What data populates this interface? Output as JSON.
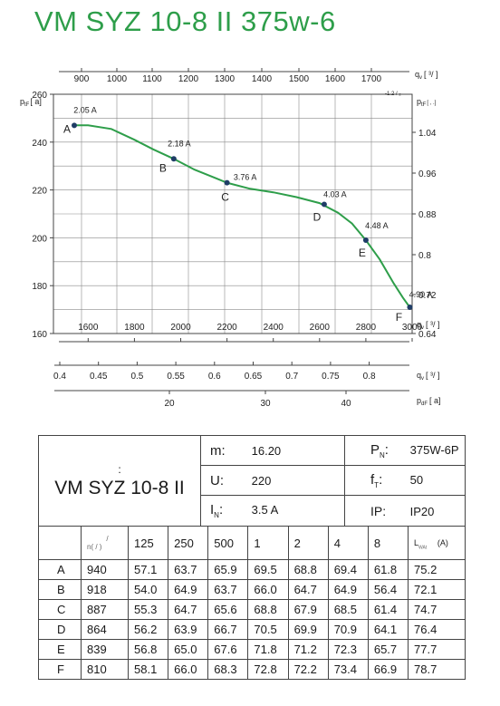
{
  "title": "VM SYZ 10-8 II 375w-6",
  "chart_data": {
    "type": "line",
    "top_axis": {
      "label": "q",
      "label_sub": "v",
      "unit": "[ ³/ ]",
      "sub_note": "-1.2 / ₂",
      "ticks": [
        "900",
        "1000",
        "1100",
        "1200",
        "1300",
        "1400",
        "1500",
        "1600",
        "1700"
      ]
    },
    "left_axis": {
      "label": "p",
      "label_sub": "tF",
      "unit": "[ a]",
      "ticks": [
        "260",
        "240",
        "220",
        "200",
        "180",
        "160"
      ],
      "ylim": [
        160,
        260
      ]
    },
    "right_axis": {
      "label": "p",
      "label_sub": "tF",
      "unit": "[ , .]",
      "ticks": [
        "1.04",
        "0.96",
        "0.88",
        "0.8",
        "0.72",
        "0.64"
      ]
    },
    "bottom_axis_1": {
      "label": "q",
      "label_sub": "v",
      "unit": "[ ³/ ]",
      "ticks": [
        "1600",
        "1800",
        "2000",
        "2200",
        "2400",
        "2600",
        "2800",
        "3000"
      ],
      "xlim": [
        1450,
        3000
      ]
    },
    "bottom_axis_2": {
      "label": "q",
      "label_sub": "v",
      "unit": "[ ³/ ]",
      "ticks": [
        "0.4",
        "0.45",
        "0.5",
        "0.55",
        "0.6",
        "0.65",
        "0.7",
        "0.75",
        "0.8"
      ]
    },
    "bottom_axis_3": {
      "label": "p",
      "label_sub": "dF",
      "unit": "[ a]",
      "ticks": [
        "20",
        "30",
        "40"
      ]
    },
    "series": [
      {
        "x": [
          1540,
          1600,
          1700,
          1800,
          1880,
          1970,
          2060,
          2150,
          2200,
          2300,
          2400,
          2500,
          2600,
          2680,
          2740,
          2800,
          2860,
          2920,
          2960,
          2990
        ],
        "y": [
          247,
          247,
          245.5,
          241,
          237,
          233,
          228.5,
          225,
          223,
          220.5,
          219,
          217,
          214.5,
          210.5,
          206,
          199,
          191,
          181,
          175,
          171
        ],
        "color": "#2e9e4a"
      }
    ],
    "operating_points": [
      {
        "label": "A",
        "current": "2.05 A",
        "x": 1540,
        "y": 247
      },
      {
        "label": "B",
        "current": "2.18 A",
        "x": 1970,
        "y": 233
      },
      {
        "label": "C",
        "current": "3.76 A",
        "x": 2200,
        "y": 223
      },
      {
        "label": "D",
        "current": "4.03 A",
        "x": 2620,
        "y": 214
      },
      {
        "label": "E",
        "current": "4.48 A",
        "x": 2800,
        "y": 199
      },
      {
        "label": "F",
        "current": "4.90 A",
        "x": 2990,
        "y": 171
      }
    ],
    "grid": true,
    "colors": {
      "curve": "#2e9e4a",
      "point": "#1f3d66",
      "grid": "#888888"
    }
  },
  "spec": {
    "colon": ":",
    "model": "VM SYZ 10-8 II",
    "m_label": "m:",
    "m_value": "16.20",
    "pn_label": "P",
    "pn_sub": "N",
    "pn_colon": ":",
    "pn_value": "375W-6P",
    "u_label": "U:",
    "u_value": "220",
    "f_label": "f",
    "f_sub": "T",
    "f_colon": ":",
    "f_value": "50",
    "in_label": "I",
    "in_sub": "N",
    "in_colon": ":",
    "in_value": "3.5  A",
    "ip_label": "IP:",
    "ip_value": "IP20"
  },
  "noise_table": {
    "n_header": "n( / )",
    "n_header_top": "/",
    "freq_headers": [
      "125",
      "250",
      "500",
      "1",
      "2",
      "4",
      "8"
    ],
    "lw_header": "L",
    "lw_sub": "WAt",
    "lw_unit": "(A)",
    "rows": [
      {
        "label": "A",
        "n": "940",
        "values": [
          "57.1",
          "63.7",
          "65.9",
          "69.5",
          "68.8",
          "69.4",
          "61.8"
        ],
        "lw": "75.2"
      },
      {
        "label": "B",
        "n": "918",
        "values": [
          "54.0",
          "64.9",
          "63.7",
          "66.0",
          "64.7",
          "64.9",
          "56.4"
        ],
        "lw": "72.1"
      },
      {
        "label": "C",
        "n": "887",
        "values": [
          "55.3",
          "64.7",
          "65.6",
          "68.8",
          "67.9",
          "68.5",
          "61.4"
        ],
        "lw": "74.7"
      },
      {
        "label": "D",
        "n": "864",
        "values": [
          "56.2",
          "63.9",
          "66.7",
          "70.5",
          "69.9",
          "70.9",
          "64.1"
        ],
        "lw": "76.4"
      },
      {
        "label": "E",
        "n": "839",
        "values": [
          "56.8",
          "65.0",
          "67.6",
          "71.8",
          "71.2",
          "72.3",
          "65.7"
        ],
        "lw": "77.7"
      },
      {
        "label": "F",
        "n": "810",
        "values": [
          "58.1",
          "66.0",
          "68.3",
          "72.8",
          "72.2",
          "73.4",
          "66.9"
        ],
        "lw": "78.7"
      }
    ]
  }
}
